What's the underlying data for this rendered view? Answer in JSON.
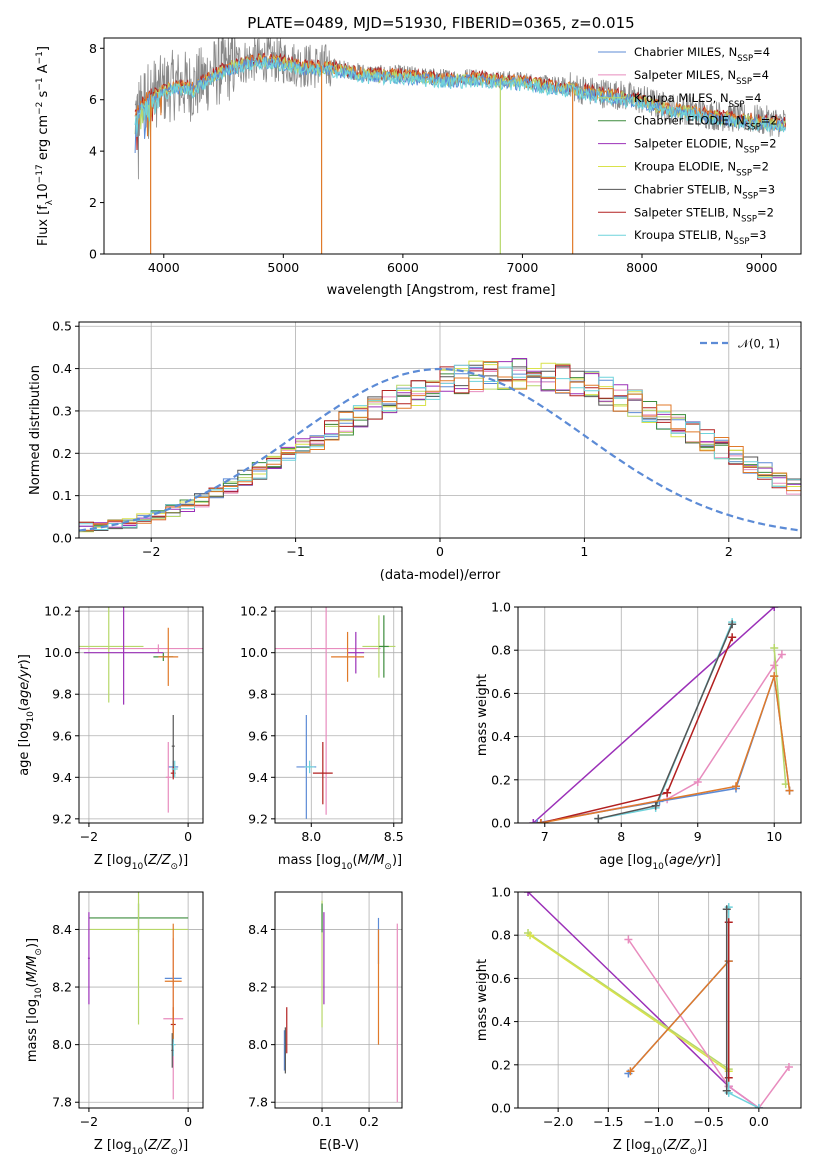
{
  "figure_title": "PLATE=0489, MJD=51930, FIBERID=0365, z=0.015",
  "colors": {
    "Chabrier MILES": "#5c8bd6",
    "Salpeter MILES": "#e88cbe",
    "Kroupa MILES": "#b7d76a",
    "Chabrier ELODIE": "#3d8c3d",
    "Salpeter ELODIE": "#9b30b8",
    "Kroupa ELODIE": "#d9e24a",
    "Chabrier STELIB": "#555555",
    "Salpeter STELIB": "#b22020",
    "Kroupa STELIB": "#6fd3dc",
    "data": "#888888",
    "orange": "#e07a2a"
  },
  "chart_data": [
    {
      "type": "line",
      "panel": "spectrum",
      "xlabel": "wavelength [Angstrom, rest frame]",
      "ylabel": "Flux [f_λ 10^-17 erg cm^-2 s^-1 A^-1]",
      "xlim": [
        3500,
        9330
      ],
      "ylim": [
        0,
        8.4
      ],
      "xticks": [
        4000,
        5000,
        6000,
        7000,
        8000,
        9000
      ],
      "yticks": [
        0,
        2,
        4,
        6,
        8
      ],
      "legend_placement": "top-right",
      "legend": [
        {
          "name": "Chabrier MILES, N",
          "sub": "SSP",
          "n": "=4"
        },
        {
          "name": "Salpeter MILES, N",
          "sub": "SSP",
          "n": "=4"
        },
        {
          "name": "Kroupa MILES, N",
          "sub": "SSP",
          "n": "=4"
        },
        {
          "name": "Chabrier ELODIE, N",
          "sub": "SSP",
          "n": "=2"
        },
        {
          "name": "Salpeter ELODIE, N",
          "sub": "SSP",
          "n": "=2"
        },
        {
          "name": "Kroupa ELODIE, N",
          "sub": "SSP",
          "n": "=2"
        },
        {
          "name": "Chabrier STELIB, N",
          "sub": "SSP",
          "n": "=3"
        },
        {
          "name": "Salpeter STELIB, N",
          "sub": "SSP",
          "n": "=2"
        },
        {
          "name": "Kroupa STELIB, N",
          "sub": "SSP",
          "n": "=3"
        }
      ],
      "continuum": {
        "x": [
          3760,
          3850,
          3950,
          4100,
          4250,
          4400,
          4600,
          4800,
          5000,
          5200,
          5400,
          5600,
          5800,
          6000,
          6200,
          6400,
          6600,
          6800,
          7000,
          7200,
          7400,
          7600,
          7800,
          8000,
          8200,
          8400,
          8600,
          8800,
          9000,
          9200
        ],
        "y": [
          5.4,
          6.1,
          6.3,
          6.6,
          6.5,
          7.0,
          7.4,
          7.6,
          7.5,
          7.3,
          7.3,
          7.1,
          7.0,
          7.0,
          6.9,
          6.85,
          6.9,
          6.8,
          6.75,
          6.6,
          6.5,
          6.3,
          6.2,
          6.0,
          5.7,
          5.6,
          5.4,
          5.3,
          5.2,
          5.1
        ]
      }
    },
    {
      "type": "bar",
      "panel": "residual histogram",
      "xlabel": "(data-model)/error",
      "ylabel": "Normed distribution",
      "xlim": [
        -2.5,
        2.5
      ],
      "ylim": [
        0,
        0.51
      ],
      "xticks": [
        -2,
        -1,
        0,
        1,
        2
      ],
      "yticks": [
        0.0,
        0.1,
        0.2,
        0.3,
        0.4,
        0.5
      ],
      "legend_placement": "top-right",
      "legend_label": "𝒩(0, 1)",
      "bin_edges_start": -2.5,
      "bin_width": 0.1,
      "base": [
        0.025,
        0.026,
        0.03,
        0.036,
        0.045,
        0.054,
        0.065,
        0.076,
        0.09,
        0.105,
        0.122,
        0.14,
        0.158,
        0.177,
        0.195,
        0.214,
        0.233,
        0.252,
        0.27,
        0.288,
        0.305,
        0.32,
        0.334,
        0.347,
        0.358,
        0.368,
        0.376,
        0.382,
        0.386,
        0.388,
        0.389,
        0.386,
        0.382,
        0.376,
        0.368,
        0.358,
        0.346,
        0.333,
        0.318,
        0.302,
        0.286,
        0.268,
        0.25,
        0.23,
        0.212,
        0.193,
        0.175,
        0.157,
        0.139,
        0.121,
        0.105
      ],
      "normal_curve": true
    },
    {
      "type": "scatter",
      "panel": "age vs Z",
      "xlabel": "Z [log10(Z/Z⊙)]",
      "ylabel": "age  [log10(age/yr)]",
      "xlim": [
        -2.2,
        0.3
      ],
      "ylim": [
        9.18,
        10.22
      ],
      "xticks": [
        -2,
        0
      ],
      "yticks": [
        9.2,
        9.4,
        9.6,
        9.8,
        10.0,
        10.2
      ],
      "points": [
        {
          "series": "Chabrier MILES",
          "x": -0.3,
          "y": 9.45,
          "xerr": 0.1,
          "yerr": 0.03
        },
        {
          "series": "Salpeter MILES",
          "x": -0.6,
          "y": 10.02,
          "xerr": 1.6,
          "yerr": 0.02
        },
        {
          "series": "Salpeter MILES",
          "x": -0.4,
          "y": 9.4,
          "xerr": 0.05,
          "yerr": 0.17
        },
        {
          "series": "Kroupa MILES",
          "x": -1.6,
          "y": 10.03,
          "xerr": 0.7,
          "yerr": 0.27
        },
        {
          "series": "Chabrier ELODIE",
          "x": -0.5,
          "y": 9.98,
          "xerr": 0.2,
          "yerr": 0.02
        },
        {
          "series": "Salpeter ELODIE",
          "x": -1.3,
          "y": 10.0,
          "xerr": 0.8,
          "yerr": 0.25
        },
        {
          "series": "Chabrier STELIB",
          "x": -0.3,
          "y": 9.55,
          "xerr": 0.03,
          "yerr": 0.15
        },
        {
          "series": "Salpeter STELIB",
          "x": -0.3,
          "y": 9.42,
          "xerr": 0.05,
          "yerr": 0.03
        },
        {
          "series": "Kroupa STELIB",
          "x": -0.27,
          "y": 9.44,
          "xerr": 0.06,
          "yerr": 0.04
        },
        {
          "series": "orange",
          "x": -0.4,
          "y": 9.98,
          "xerr": 0.2,
          "yerr": 0.14
        }
      ]
    },
    {
      "type": "scatter",
      "panel": "age vs mass",
      "xlabel": "mass [log10(M/M⊙)]",
      "ylabel": "",
      "xlim": [
        7.78,
        8.55
      ],
      "ylim": [
        9.18,
        10.22
      ],
      "xticks": [
        8.0,
        8.5
      ],
      "yticks": [
        9.2,
        9.4,
        9.6,
        9.8,
        10.0,
        10.2
      ],
      "points": [
        {
          "series": "Chabrier MILES",
          "x": 7.97,
          "y": 9.45,
          "xerr": 0.06,
          "yerr": 0.25
        },
        {
          "series": "Salpeter MILES",
          "x": 8.09,
          "y": 10.02,
          "xerr": 0.33,
          "yerr": 0.8
        },
        {
          "series": "Salpeter STELIB",
          "x": 8.07,
          "y": 9.42,
          "xerr": 0.06,
          "yerr": 0.15
        },
        {
          "series": "Kroupa MILES",
          "x": 8.41,
          "y": 10.03,
          "xerr": 0.1,
          "yerr": 0.15
        },
        {
          "series": "Salpeter ELODIE",
          "x": 8.27,
          "y": 10.0,
          "xerr": 0.05,
          "yerr": 0.1
        },
        {
          "series": "Chabrier ELODIE",
          "x": 8.44,
          "y": 10.03,
          "xerr": 0.03,
          "yerr": 0.15
        },
        {
          "series": "Kroupa STELIB",
          "x": 7.99,
          "y": 9.45,
          "xerr": 0.03,
          "yerr": 0.03
        },
        {
          "series": "orange",
          "x": 8.22,
          "y": 9.98,
          "xerr": 0.1,
          "yerr": 0.12
        }
      ]
    },
    {
      "type": "line",
      "panel": "mass weight vs age",
      "xlabel": "age  [log10(age/yr)]",
      "ylabel": "mass weight",
      "xlim": [
        6.65,
        10.35
      ],
      "ylim": [
        0,
        1.0
      ],
      "xticks": [
        7,
        8,
        9,
        10
      ],
      "yticks": [
        0.0,
        0.2,
        0.4,
        0.6,
        0.8,
        1.0
      ],
      "series": [
        {
          "name": "Salpeter ELODIE",
          "x": [
            6.85,
            10.0
          ],
          "y": [
            0.0,
            1.0
          ]
        },
        {
          "name": "Salpeter MILES",
          "x": [
            6.9,
            8.6,
            9.0,
            10.0,
            10.1
          ],
          "y": [
            0.0,
            0.11,
            0.19,
            0.73,
            0.78
          ]
        },
        {
          "name": "Chabrier MILES",
          "x": [
            6.9,
            8.5,
            9.5,
            10.0,
            10.2
          ],
          "y": [
            0.0,
            0.1,
            0.16,
            0.68,
            0.15
          ]
        },
        {
          "name": "Kroupa MILES",
          "x": [
            10.0,
            10.15
          ],
          "y": [
            0.81,
            0.18
          ]
        },
        {
          "name": "Salpeter STELIB",
          "x": [
            6.95,
            8.6,
            9.45
          ],
          "y": [
            0.0,
            0.14,
            0.86
          ]
        },
        {
          "name": "Kroupa STELIB",
          "x": [
            7.7,
            8.45,
            9.45
          ],
          "y": [
            0.02,
            0.07,
            0.93
          ]
        },
        {
          "name": "Chabrier STELIB",
          "x": [
            7.7,
            8.45,
            9.45
          ],
          "y": [
            0.02,
            0.08,
            0.92
          ]
        },
        {
          "name": "orange",
          "x": [
            6.95,
            9.5,
            10.0,
            10.2
          ],
          "y": [
            0.0,
            0.17,
            0.68,
            0.15
          ]
        }
      ]
    },
    {
      "type": "scatter",
      "panel": "mass vs Z",
      "xlabel": "Z [log10(Z/Z⊙)]",
      "ylabel": "mass [log10(M/M⊙)]",
      "xlim": [
        -2.2,
        0.3
      ],
      "ylim": [
        7.78,
        8.53
      ],
      "xticks": [
        -2,
        0
      ],
      "yticks": [
        7.8,
        8.0,
        8.2,
        8.4
      ],
      "points": [
        {
          "series": "Chabrier MILES",
          "x": -0.3,
          "y": 8.23,
          "xerr": 0.17,
          "yerr": 0.02
        },
        {
          "series": "Chabrier ELODIE",
          "x": -1.0,
          "y": 8.44,
          "xerr": 1.0,
          "yerr": 0.05
        },
        {
          "series": "Kroupa MILES",
          "x": -1.0,
          "y": 8.4,
          "xerr": 1.0,
          "yerr": 0.33
        },
        {
          "series": "Salpeter ELODIE",
          "x": -2.0,
          "y": 8.3,
          "xerr": 0.02,
          "yerr": 0.16
        },
        {
          "series": "Salpeter MILES",
          "x": -0.3,
          "y": 8.09,
          "xerr": 0.2,
          "yerr": 0.28
        },
        {
          "series": "Salpeter STELIB",
          "x": -0.3,
          "y": 8.07,
          "xerr": 0.05,
          "yerr": 0.06
        },
        {
          "series": "Kroupa STELIB",
          "x": -0.3,
          "y": 8.0,
          "xerr": 0.05,
          "yerr": 0.04
        },
        {
          "series": "Chabrier STELIB",
          "x": -0.32,
          "y": 7.98,
          "xerr": 0.02,
          "yerr": 0.06
        },
        {
          "series": "orange",
          "x": -0.3,
          "y": 8.22,
          "xerr": 0.17,
          "yerr": 0.2
        }
      ]
    },
    {
      "type": "scatter",
      "panel": "mass vs E(B-V)",
      "xlabel": "E(B-V)",
      "ylabel": "",
      "xlim": [
        0.0,
        0.27
      ],
      "ylim": [
        7.78,
        8.53
      ],
      "xticks": [
        0.1,
        0.2
      ],
      "yticks": [
        7.8,
        8.0,
        8.2,
        8.4
      ],
      "points": [
        {
          "series": "Chabrier MILES",
          "x": 0.02,
          "y": 7.98,
          "yerr": 0.07
        },
        {
          "series": "Chabrier STELIB",
          "x": 0.022,
          "y": 7.98,
          "yerr": 0.08
        },
        {
          "series": "Salpeter STELIB",
          "x": 0.025,
          "y": 8.05,
          "yerr": 0.08
        },
        {
          "series": "Kroupa MILES",
          "x": 0.1,
          "y": 8.28,
          "yerr": 0.22
        },
        {
          "series": "Chabrier ELODIE",
          "x": 0.1,
          "y": 8.44,
          "yerr": 0.05
        },
        {
          "series": "Salpeter ELODIE",
          "x": 0.104,
          "y": 8.3,
          "yerr": 0.16
        },
        {
          "series": "Chabrier MILES",
          "x": 0.22,
          "y": 8.36,
          "yerr": 0.08
        },
        {
          "series": "orange",
          "x": 0.22,
          "y": 8.2,
          "yerr": 0.2
        },
        {
          "series": "Salpeter MILES",
          "x": 0.26,
          "y": 8.11,
          "yerr": 0.31
        }
      ]
    },
    {
      "type": "line",
      "panel": "mass weight vs Z",
      "xlabel": "Z [log10(Z/Z⊙)]",
      "ylabel": "mass weight",
      "xlim": [
        -2.4,
        0.42
      ],
      "ylim": [
        0,
        1.0
      ],
      "xticks": [
        -2.0,
        -1.5,
        -1.0,
        -0.5,
        0.0
      ],
      "yticks": [
        0.0,
        0.2,
        0.4,
        0.6,
        0.8,
        1.0
      ],
      "series": [
        {
          "name": "Salpeter ELODIE",
          "x": [
            -2.3,
            -0.3,
            0.0
          ],
          "y": [
            1.0,
            0.1,
            0.0
          ]
        },
        {
          "name": "Kroupa MILES",
          "x": [
            -2.3,
            -0.3
          ],
          "y": [
            0.81,
            0.18
          ]
        },
        {
          "name": "Kroupa ELODIE",
          "x": [
            -2.28,
            -0.3
          ],
          "y": [
            0.8,
            0.17
          ]
        },
        {
          "name": "Salpeter MILES",
          "x": [
            -1.3,
            -0.3,
            0.0,
            0.3
          ],
          "y": [
            0.78,
            0.1,
            0.0,
            0.19
          ]
        },
        {
          "name": "Chabrier MILES",
          "x": [
            -1.3,
            -0.3
          ],
          "y": [
            0.16,
            0.68
          ]
        },
        {
          "name": "orange",
          "x": [
            -1.28,
            -0.3
          ],
          "y": [
            0.17,
            0.68
          ]
        },
        {
          "name": "Kroupa STELIB",
          "x": [
            -0.3,
            -0.3,
            0.0
          ],
          "y": [
            0.93,
            0.07,
            0.0
          ]
        },
        {
          "name": "Salpeter STELIB",
          "x": [
            -0.3,
            -0.3
          ],
          "y": [
            0.86,
            0.14
          ]
        },
        {
          "name": "Chabrier STELIB",
          "x": [
            -0.32,
            -0.32
          ],
          "y": [
            0.92,
            0.08
          ]
        }
      ]
    }
  ]
}
